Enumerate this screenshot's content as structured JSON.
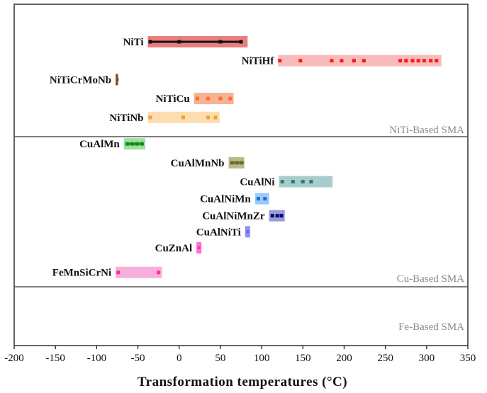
{
  "chart_data": {
    "type": "range-bar",
    "xlabel": "Transformation temperatures (°C)",
    "xlim": [
      -200,
      350
    ],
    "xticks": [
      -200,
      -150,
      -100,
      -50,
      0,
      50,
      100,
      150,
      200,
      250,
      300,
      350
    ],
    "grid": false,
    "panels": [
      {
        "label": "NiTi-Based SMA",
        "y_range": [
          0,
          5.45
        ]
      },
      {
        "label": "Cu-Based SMA",
        "y_range": [
          5.45,
          11.3
        ]
      },
      {
        "label": "Fe-Based SMA",
        "y_range": [
          11.3,
          13.2
        ]
      }
    ],
    "series": [
      {
        "category": "NiTi",
        "y": 1,
        "range": [
          -38,
          83
        ],
        "markers": [
          -35,
          0,
          50,
          75
        ],
        "color": "#e8706f",
        "mark_color": "#111111",
        "marker_style": "line"
      },
      {
        "category": "NiTiHf",
        "y": 2,
        "range": [
          120,
          318
        ],
        "markers": [
          122,
          147,
          185,
          197,
          212,
          224,
          268,
          275,
          283,
          290,
          297,
          305,
          312
        ],
        "color": "#f7b2b2",
        "mark_color": "#ff1a1a",
        "marker_style": "square"
      },
      {
        "category": "NiTiCrMoNb",
        "y": 3,
        "range": [
          -77,
          -74
        ],
        "markers": [
          -75
        ],
        "color": "#8b4a22",
        "mark_color": "#8b4a22",
        "marker_style": "square"
      },
      {
        "category": "NiTiCu",
        "y": 4,
        "range": [
          18,
          66
        ],
        "markers": [
          22,
          35,
          50,
          62
        ],
        "color": "#f4aa88",
        "mark_color": "#ff6a30",
        "marker_style": "square"
      },
      {
        "category": "NiTiNb",
        "y": 5,
        "range": [
          -38,
          49
        ],
        "markers": [
          -35,
          5,
          35,
          44
        ],
        "color": "#fcd9a6",
        "mark_color": "#f0a030",
        "marker_style": "square"
      },
      {
        "category": "CuAlMn",
        "y": 6.4,
        "range": [
          -67,
          -41
        ],
        "markers": [
          -63,
          -57,
          -51,
          -45
        ],
        "color": "#90dd90",
        "mark_color": "#1a8a1a",
        "marker_style": "line"
      },
      {
        "category": "CuAlMnNb",
        "y": 7.4,
        "range": [
          60,
          79
        ],
        "markers": [
          64,
          70,
          76
        ],
        "color": "#b5b07a",
        "mark_color": "#6b6b30",
        "marker_style": "line"
      },
      {
        "category": "CuAlNi",
        "y": 8.4,
        "range": [
          121,
          186
        ],
        "markers": [
          125,
          138,
          150,
          160
        ],
        "color": "#9dc6c6",
        "mark_color": "#2f7a7a",
        "marker_style": "square"
      },
      {
        "category": "CuAlNiMn",
        "y": 9.3,
        "range": [
          92,
          109
        ],
        "markers": [
          96,
          104
        ],
        "color": "#8ec4f8",
        "mark_color": "#1e6bd8",
        "marker_style": "square"
      },
      {
        "category": "CuAlNiMnZr",
        "y": 10.2,
        "range": [
          109,
          128
        ],
        "markers": [
          113,
          119,
          124
        ],
        "color": "#8f90d8",
        "mark_color": "#0a0a70",
        "marker_style": "square"
      },
      {
        "category": "CuAlNiTi",
        "y": 11.05,
        "range": [
          80,
          86
        ],
        "markers": [
          83
        ],
        "color": "#8f90f0",
        "mark_color": "#6a6af0",
        "marker_style": "square"
      },
      {
        "category": "CuZnAl",
        "y": 11.9,
        "range": [
          21,
          27
        ],
        "markers": [
          24
        ],
        "color": "#ff70d0",
        "mark_color": "#ff30c0",
        "marker_style": "square"
      },
      {
        "category": "FeMnSiCrNi",
        "y": 13.2,
        "range": [
          -77,
          -21
        ],
        "markers": [
          -74,
          -25
        ],
        "color": "#f7a6d6",
        "mark_color": "#ff2aa5",
        "marker_style": "square"
      }
    ]
  }
}
